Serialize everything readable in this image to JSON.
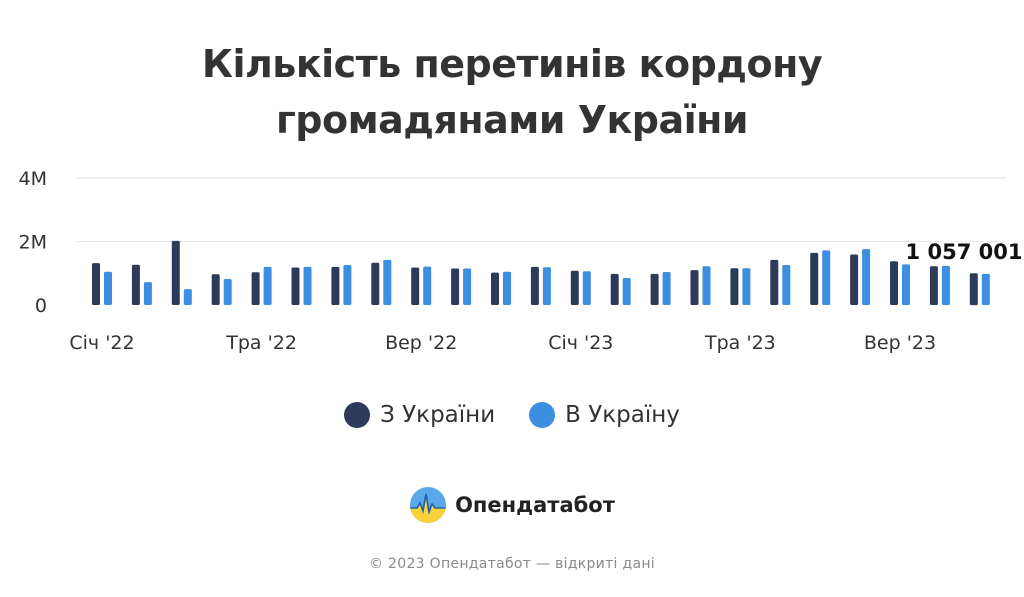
{
  "title": {
    "line1": "Кількість перетинів кордону",
    "line2": "громадянами України"
  },
  "legend": {
    "items": [
      {
        "label": "З України",
        "color": "#2d3a5a"
      },
      {
        "label": "В Україну",
        "color": "#3b8ee0"
      }
    ]
  },
  "brand": {
    "name": "Опендатабот",
    "icon": "opendatabot-logo-icon"
  },
  "footer": {
    "text": "© 2023 Опендатабот — відкриті дані"
  },
  "chart_data": {
    "type": "bar",
    "categories": [
      "Січ '22",
      "",
      "",
      "",
      "Тра '22",
      "",
      "",
      "",
      "Вер '22",
      "",
      "",
      "",
      "Січ '23",
      "",
      "",
      "",
      "Тра '23",
      "",
      "",
      "",
      "Вер '23",
      "",
      "",
      ""
    ],
    "y_ticks": [
      "0",
      "2M",
      "4M"
    ],
    "ylim": [
      0,
      4000000
    ],
    "grid": true,
    "legend_position": "bottom",
    "series": [
      {
        "name": "З України",
        "color": "#2d3a5a",
        "values": [
          1320000,
          1270000,
          2020000,
          970000,
          1030000,
          1180000,
          1200000,
          1330000,
          1180000,
          1150000,
          1020000,
          1200000,
          1080000,
          980000,
          980000,
          1100000,
          1160000,
          1420000,
          1640000,
          1590000,
          1380000,
          1220000,
          1000000,
          0
        ]
      },
      {
        "name": "В Україну",
        "color": "#3b8ee0",
        "values": [
          1050000,
          720000,
          500000,
          820000,
          1200000,
          1200000,
          1260000,
          1420000,
          1210000,
          1150000,
          1050000,
          1190000,
          1060000,
          850000,
          1040000,
          1220000,
          1160000,
          1260000,
          1720000,
          1760000,
          1280000,
          1230000,
          980000,
          0
        ]
      }
    ],
    "annotation": {
      "text": "1 057 001"
    }
  }
}
